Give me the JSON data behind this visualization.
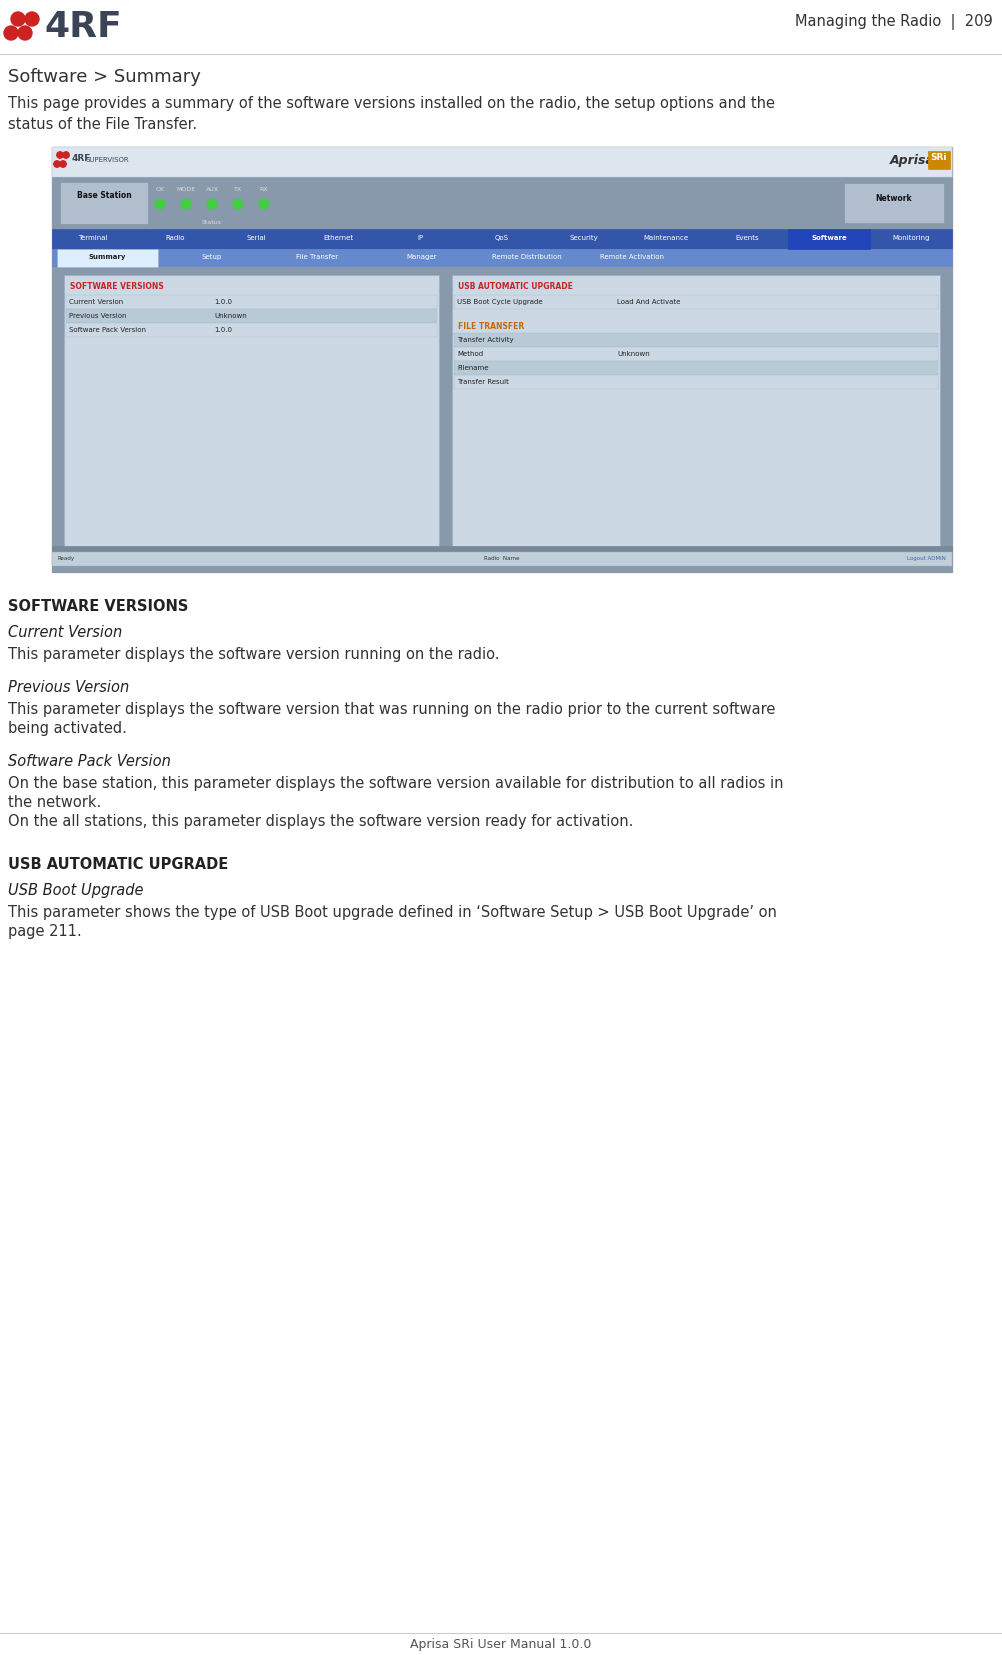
{
  "page_header_right": "Managing the Radio  |  209",
  "footer_text": "Aprisa SRi User Manual 1.0.0",
  "section_title": "Software > Summary",
  "intro_line1": "This page provides a summary of the software versions installed on the radio, the setup options and the",
  "intro_line2": "status of the File Transfer.",
  "nav_main": [
    "Terminal",
    "Radio",
    "Serial",
    "Ethernet",
    "IP",
    "QoS",
    "Security",
    "Maintenance",
    "Events",
    "Software",
    "Monitoring"
  ],
  "nav_active": "Software",
  "nav_sub": [
    "Summary",
    "Setup",
    "File Transfer",
    "Manager",
    "Remote Distribution",
    "Remote Activation"
  ],
  "nav_sub_active": "Summary",
  "status_labels": [
    "OK",
    "MODE",
    "AUX",
    "TX",
    "RX"
  ],
  "left_panel_title": "SOFTWARE VERSIONS",
  "left_rows": [
    {
      "label": "Current Version",
      "value": "1.0.0",
      "shaded": false
    },
    {
      "label": "Previous Version",
      "value": "Unknown",
      "shaded": true
    },
    {
      "label": "Software Pack Version",
      "value": "1.0.0",
      "shaded": false
    }
  ],
  "right_panel_title1": "USB AUTOMATIC UPGRADE",
  "right_rows1": [
    {
      "label": "USB Boot Cycle Upgrade",
      "value": "Load And Activate",
      "shaded": false
    }
  ],
  "right_panel_title2": "FILE TRANSFER",
  "right_rows2": [
    {
      "label": "Transfer Activity",
      "value": "",
      "shaded": true
    },
    {
      "label": "Method",
      "value": "Unknown",
      "shaded": false
    },
    {
      "label": "Filename",
      "value": "",
      "shaded": true
    },
    {
      "label": "Transfer Result",
      "value": "",
      "shaded": false
    }
  ],
  "footer_bar": [
    "Ready",
    "Radio  Name",
    "Logout ADMIN"
  ],
  "desc_blocks": [
    {
      "section_head": "SOFTWARE VERSIONS",
      "items": [
        {
          "subhead": "Current Version",
          "body": "This parameter displays the software version running on the radio."
        },
        {
          "subhead": "Previous Version",
          "body": "This parameter displays the software version that was running on the radio prior to the current software\nbeing activated."
        },
        {
          "subhead": "Software Pack Version",
          "body": "On the base station, this parameter displays the software version available for distribution to all radios in\nthe network.\nOn the all stations, this parameter displays the software version ready for activation."
        }
      ]
    },
    {
      "section_head": "USB AUTOMATIC UPGRADE",
      "items": [
        {
          "subhead": "USB Boot Upgrade",
          "body": "This parameter shows the type of USB Boot upgrade defined in ‘Software Setup > USB Boot Upgrade’ on\npage 211."
        }
      ]
    }
  ]
}
